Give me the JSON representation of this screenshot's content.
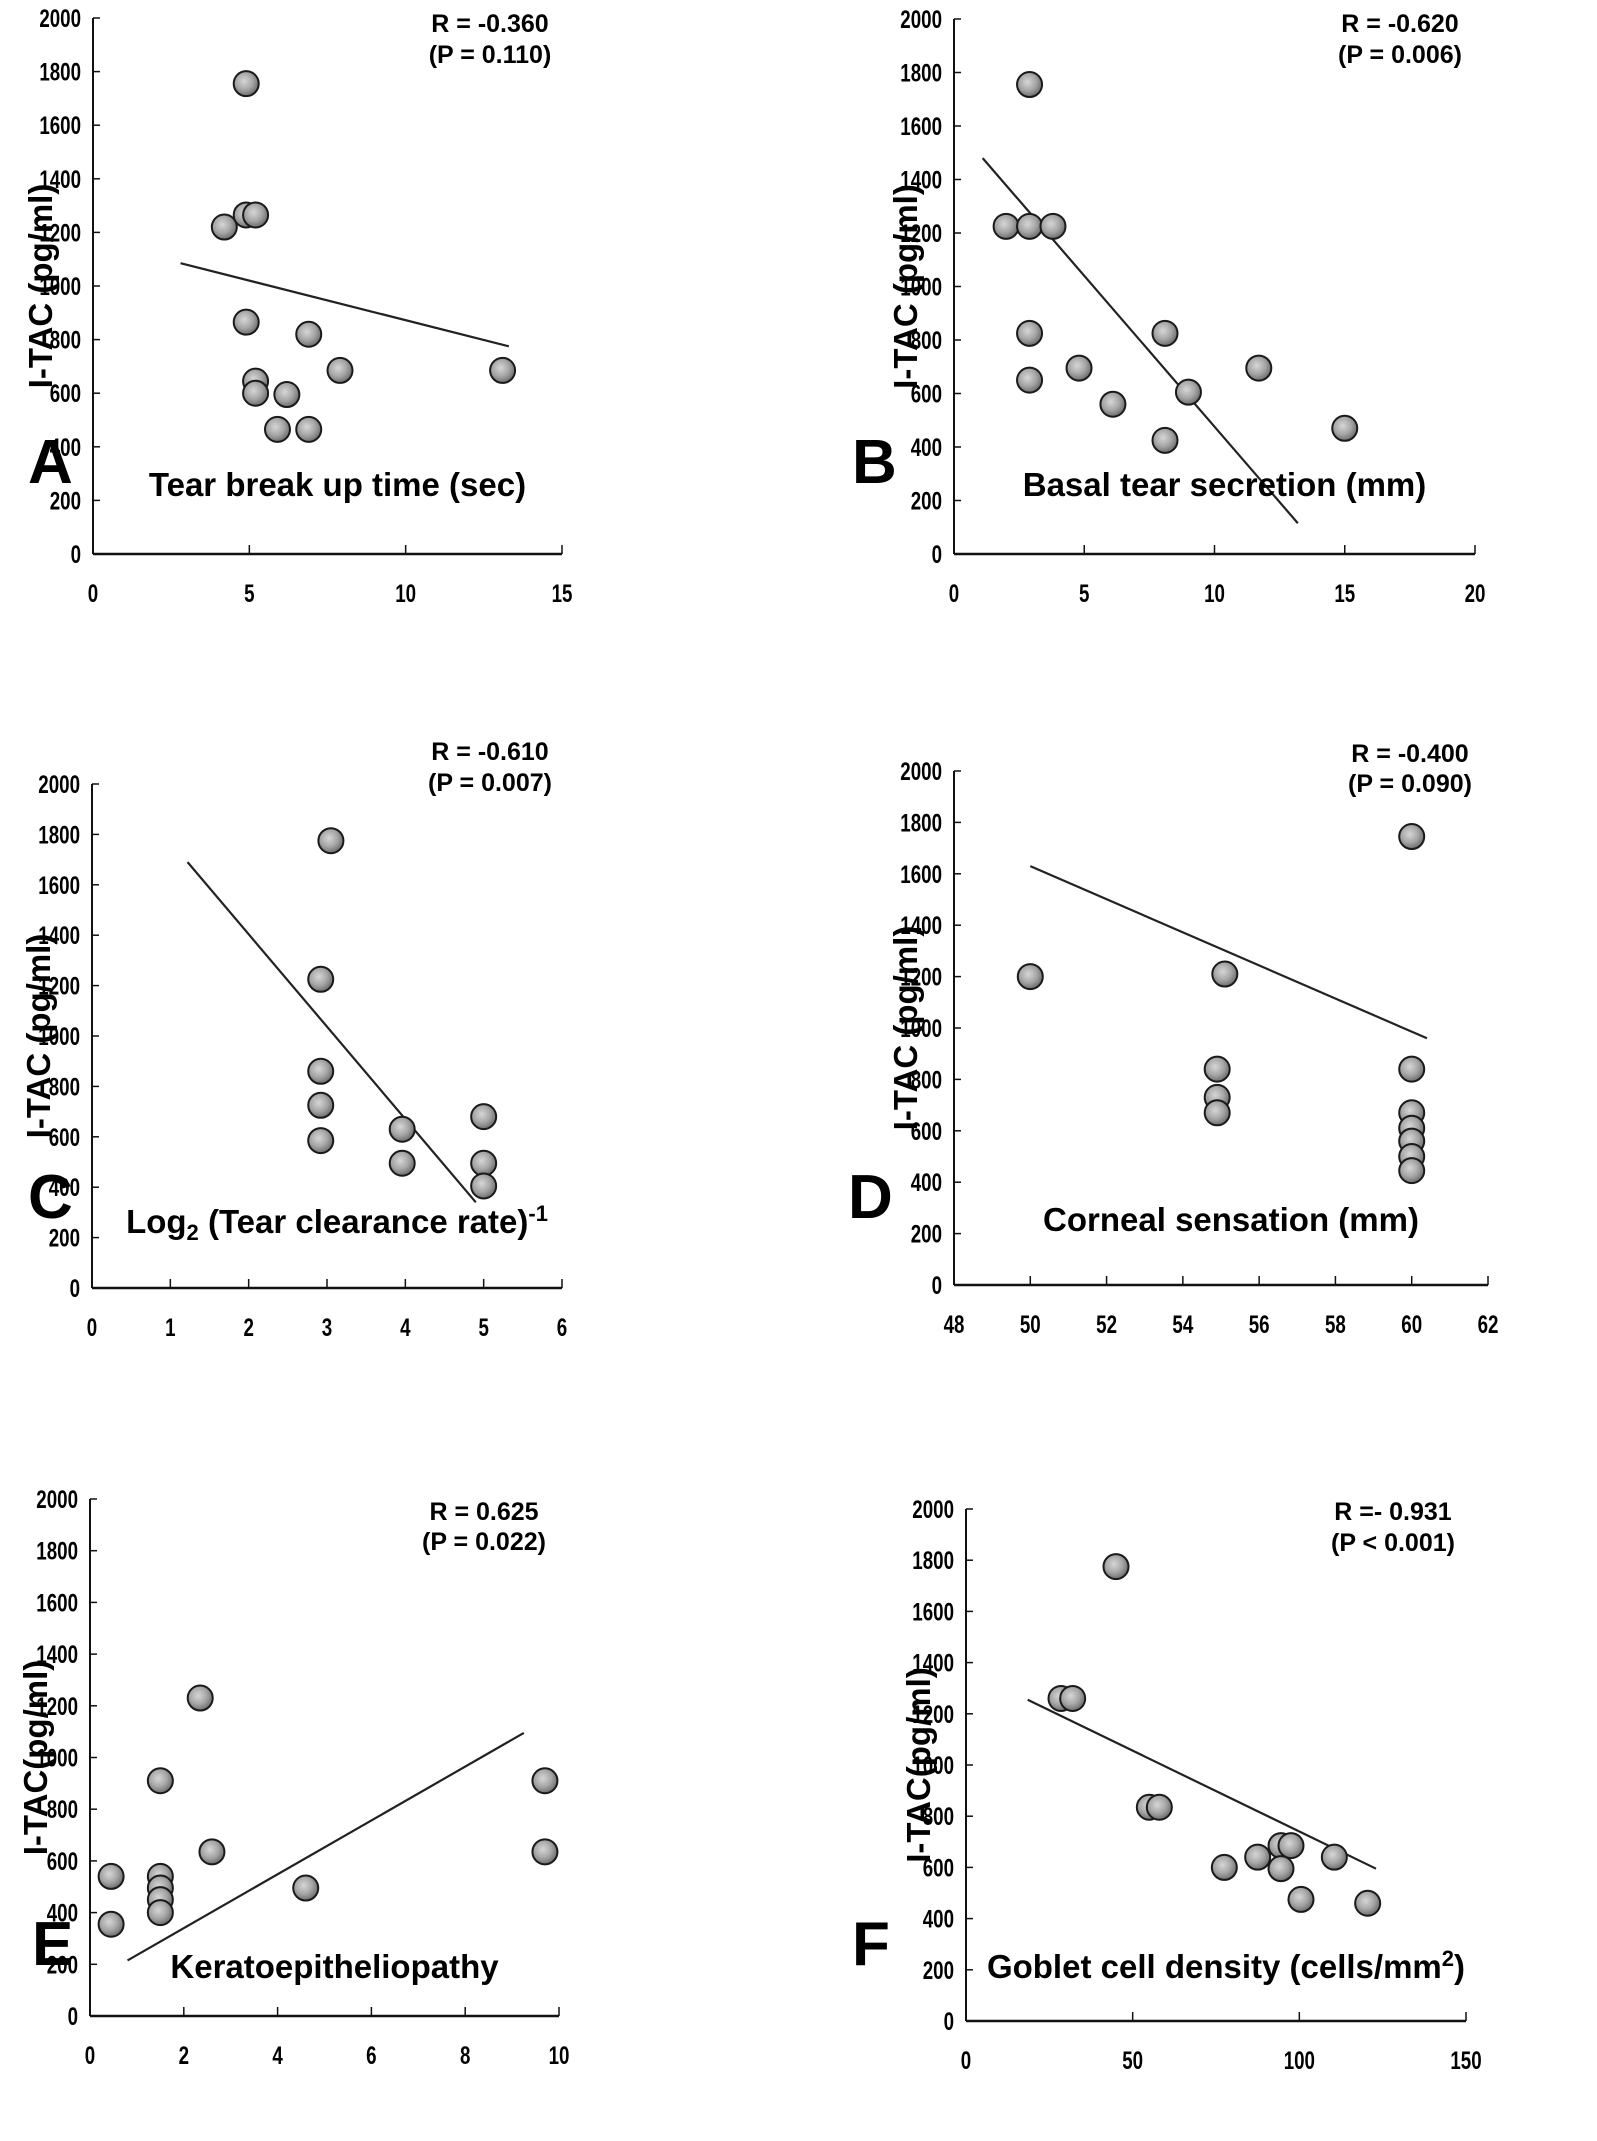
{
  "figure": {
    "point_color": "#9a9a9a",
    "line_color": "#222222"
  },
  "chart_data": [
    {
      "panel": "A",
      "type": "scatter",
      "title": "",
      "xlabel": "Tear break up time (sec)",
      "ylabel": "I-TAC (pg/ml)",
      "xlim": [
        0,
        15
      ],
      "ylim": [
        0,
        2000
      ],
      "xticks": [
        "0",
        "5",
        "10",
        "15"
      ],
      "yticks": [
        "0",
        "200",
        "400",
        "600",
        "800",
        "1000",
        "1200",
        "1400",
        "1600",
        "1800",
        "2000"
      ],
      "stat_r": "R = -0.360",
      "stat_p": "(P = 0.110)",
      "grid": false,
      "points": [
        [
          4.9,
          1755
        ],
        [
          4.2,
          1220
        ],
        [
          4.9,
          1265
        ],
        [
          5.2,
          1265
        ],
        [
          4.9,
          865
        ],
        [
          6.9,
          820
        ],
        [
          7.9,
          685
        ],
        [
          13.1,
          685
        ],
        [
          5.2,
          645
        ],
        [
          5.2,
          600
        ],
        [
          6.2,
          595
        ],
        [
          5.9,
          465
        ],
        [
          6.9,
          465
        ]
      ],
      "trendline": [
        [
          2.8,
          1085
        ],
        [
          13.3,
          775
        ]
      ]
    },
    {
      "panel": "B",
      "type": "scatter",
      "title": "",
      "xlabel": "Basal tear secretion (mm)",
      "ylabel": "I-TAC (pg/ml)",
      "xlim": [
        0,
        20
      ],
      "ylim": [
        0,
        2000
      ],
      "xticks": [
        "0",
        "5",
        "10",
        "15",
        "20"
      ],
      "yticks": [
        "0",
        "200",
        "400",
        "600",
        "800",
        "1000",
        "1200",
        "1400",
        "1600",
        "1800",
        "2000"
      ],
      "stat_r": "R = -0.620",
      "stat_p": "(P = 0.006)",
      "grid": false,
      "points": [
        [
          2.9,
          1755
        ],
        [
          2.0,
          1225
        ],
        [
          2.9,
          1225
        ],
        [
          3.8,
          1225
        ],
        [
          2.9,
          825
        ],
        [
          8.1,
          825
        ],
        [
          2.9,
          650
        ],
        [
          4.8,
          695
        ],
        [
          11.7,
          695
        ],
        [
          6.1,
          560
        ],
        [
          9.0,
          605
        ],
        [
          8.1,
          425
        ],
        [
          15.0,
          470
        ]
      ],
      "trendline": [
        [
          1.1,
          1480
        ],
        [
          13.2,
          115
        ]
      ]
    },
    {
      "panel": "C",
      "type": "scatter",
      "title": "",
      "xlabel": "Log",
      "xlabel_sub": "2",
      "xlabel_rest": " (Tear clearance rate)",
      "xlabel_sup": "-1",
      "ylabel": "I-TAC (pg/ml)",
      "xlim": [
        0,
        6
      ],
      "ylim": [
        0,
        2000
      ],
      "xticks": [
        "0",
        "1",
        "2",
        "3",
        "4",
        "5",
        "6"
      ],
      "yticks": [
        "0",
        "200",
        "400",
        "600",
        "800",
        "1000",
        "1200",
        "1400",
        "1600",
        "1800",
        "2000"
      ],
      "stat_r": "R = -0.610",
      "stat_p": "(P = 0.007)",
      "grid": false,
      "points": [
        [
          3.05,
          1775
        ],
        [
          2.92,
          1225
        ],
        [
          2.92,
          860
        ],
        [
          2.92,
          725
        ],
        [
          2.92,
          585
        ],
        [
          3.96,
          630
        ],
        [
          3.96,
          495
        ],
        [
          5.0,
          680
        ],
        [
          5.0,
          495
        ],
        [
          5.0,
          405
        ]
      ],
      "trendline": [
        [
          1.22,
          1690
        ],
        [
          4.9,
          340
        ]
      ]
    },
    {
      "panel": "D",
      "type": "scatter",
      "title": "",
      "xlabel": "Corneal sensation (mm)",
      "ylabel": "I-TAC (pg/ml)",
      "xlim": [
        48,
        62
      ],
      "ylim": [
        0,
        2000
      ],
      "xticks": [
        "48",
        "50",
        "52",
        "54",
        "56",
        "58",
        "60",
        "62"
      ],
      "yticks": [
        "0",
        "200",
        "400",
        "600",
        "800",
        "1000",
        "1200",
        "1400",
        "1600",
        "1800",
        "2000"
      ],
      "stat_r": "R = -0.400",
      "stat_p": "(P = 0.090)",
      "grid": false,
      "points": [
        [
          50.0,
          1200
        ],
        [
          55.1,
          1210
        ],
        [
          54.9,
          840
        ],
        [
          54.9,
          730
        ],
        [
          54.9,
          670
        ],
        [
          60.0,
          1745
        ],
        [
          60.0,
          840
        ],
        [
          60.0,
          670
        ],
        [
          60.0,
          610
        ],
        [
          60.0,
          560
        ],
        [
          60.0,
          500
        ],
        [
          60.0,
          445
        ]
      ],
      "trendline": [
        [
          50.0,
          1630
        ],
        [
          60.4,
          960
        ]
      ]
    },
    {
      "panel": "E",
      "type": "scatter",
      "title": "",
      "xlabel": "Keratoepitheliopathy",
      "ylabel": "I-TAC(pg/ml)",
      "xlim": [
        0,
        10
      ],
      "ylim": [
        0,
        2000
      ],
      "xticks": [
        "0",
        "2",
        "4",
        "6",
        "8",
        "10"
      ],
      "yticks": [
        "0",
        "200",
        "400",
        "600",
        "800",
        "1000",
        "1200",
        "1400",
        "1600",
        "1800",
        "2000"
      ],
      "stat_r": "R = 0.625",
      "stat_p": "(P = 0.022)",
      "grid": false,
      "points": [
        [
          0.45,
          540
        ],
        [
          0.45,
          355
        ],
        [
          1.5,
          910
        ],
        [
          1.5,
          540
        ],
        [
          1.5,
          495
        ],
        [
          1.5,
          450
        ],
        [
          1.5,
          400
        ],
        [
          2.35,
          1230
        ],
        [
          2.6,
          635
        ],
        [
          4.6,
          495
        ],
        [
          9.7,
          910
        ],
        [
          9.7,
          635
        ]
      ],
      "trendline": [
        [
          0.8,
          215
        ],
        [
          9.25,
          1095
        ]
      ]
    },
    {
      "panel": "F",
      "type": "scatter",
      "title": "",
      "xlabel": "Goblet cell density (cells/mm",
      "xlabel_sup": "2",
      "xlabel_end": ")",
      "ylabel": "I-TAC(pg/ml)",
      "xlim": [
        0,
        150
      ],
      "ylim": [
        0,
        2000
      ],
      "xticks": [
        "0",
        "50",
        "100",
        "150"
      ],
      "yticks": [
        "0",
        "200",
        "400",
        "600",
        "800",
        "1000",
        "1200",
        "1400",
        "1600",
        "1800",
        "2000"
      ],
      "stat_r": "R =- 0.931",
      "stat_p": "(P < 0.001)",
      "grid": false,
      "points": [
        [
          45,
          1775
        ],
        [
          28.5,
          1260
        ],
        [
          32,
          1260
        ],
        [
          55,
          835
        ],
        [
          58,
          835
        ],
        [
          77.5,
          600
        ],
        [
          87.5,
          640
        ],
        [
          94.5,
          685
        ],
        [
          97.5,
          685
        ],
        [
          94.5,
          595
        ],
        [
          100.5,
          475
        ],
        [
          110.5,
          640
        ],
        [
          120.5,
          460
        ]
      ],
      "trendline": [
        [
          18.5,
          1255
        ],
        [
          123,
          595
        ]
      ]
    }
  ]
}
